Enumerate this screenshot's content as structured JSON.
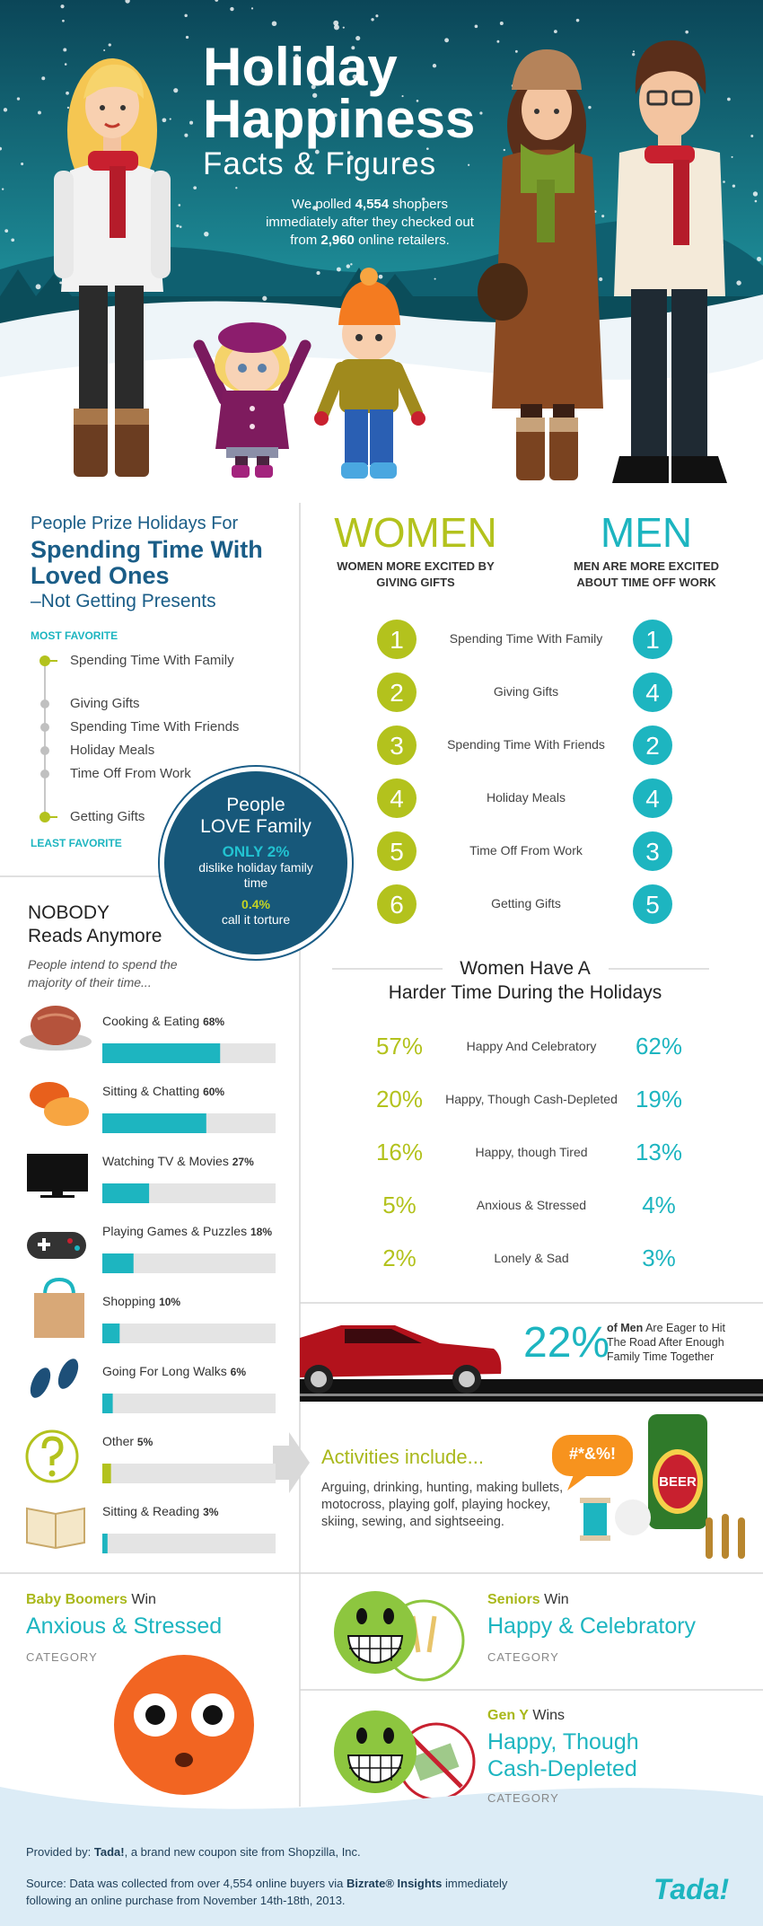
{
  "header": {
    "title_1": "Holiday",
    "title_2": "Happiness",
    "subtitle": "Facts & Figures",
    "intro": [
      "We polled",
      "4,554",
      "shoppers immediately after they checked out from",
      "2,960",
      "online retailers."
    ]
  },
  "favorites": {
    "heading": "People Prize Holidays For",
    "highlight": "Spending Time With Loved Ones",
    "subheading": "–Not Getting Presents",
    "most_label": "MOST FAVORITE",
    "least_label": "LEAST FAVORITE",
    "items": [
      "Spending Time With Family",
      "Giving Gifts",
      "Spending Time With Friends",
      "Holiday Meals",
      "Time Off From Work",
      "Getting Gifts"
    ]
  },
  "family": {
    "title_1": "People",
    "title_2": "LOVE Family",
    "stat_1": "ONLY 2%",
    "stat_1_text": "dislike holiday family time",
    "stat_2": "0.4%",
    "stat_2_text": "call it torture"
  },
  "gender": {
    "women_title": "WOMEN",
    "women_subtitle": "WOMEN MORE EXCITED BY GIVING GIFTS",
    "men_title": "MEN",
    "men_subtitle": "MEN ARE MORE EXCITED ABOUT TIME OFF WORK",
    "women_color": "#b3c21d",
    "men_color": "#1db5c0",
    "rows": [
      {
        "women": 1,
        "label": "Spending Time With Family",
        "men": 1
      },
      {
        "women": 2,
        "label": "Giving Gifts",
        "men": 4
      },
      {
        "women": 3,
        "label": "Spending Time With Friends",
        "men": 2
      },
      {
        "women": 4,
        "label": "Holiday Meals",
        "men": 4
      },
      {
        "women": 5,
        "label": "Time Off From Work",
        "men": 3
      },
      {
        "women": 6,
        "label": "Getting Gifts",
        "men": 5
      }
    ]
  },
  "reading": {
    "title_1": "NOBODY",
    "title_2": "Reads Anymore",
    "note": "People intend to spend the majority of their time...",
    "xlim": [
      0,
      100
    ],
    "color": "#1db5c0",
    "items": [
      {
        "label": "Cooking & Eating",
        "value": 68,
        "value_label": "68%"
      },
      {
        "label": "Sitting & Chatting",
        "value": 60,
        "value_label": "60%"
      },
      {
        "label": "Watching TV & Movies",
        "value": 27,
        "value_label": "27%"
      },
      {
        "label": "Playing Games & Puzzles",
        "value": 18,
        "value_label": "18%"
      },
      {
        "label": "Shopping",
        "value": 10,
        "value_label": "10%"
      },
      {
        "label": "Going For Long Walks",
        "value": 6,
        "value_label": "6%"
      },
      {
        "label": "Other",
        "value": 5,
        "value_label": "5%",
        "color": "#b3c21d"
      },
      {
        "label": "Sitting & Reading",
        "value": 3,
        "value_label": "3%"
      }
    ]
  },
  "harder_time": {
    "title_1": "Women Have A",
    "title_2": "Harder Time During the Holidays",
    "rows": [
      {
        "women": "57%",
        "label": "Happy And Celebratory",
        "men": "62%"
      },
      {
        "women": "20%",
        "label": "Happy, Though Cash-Depleted",
        "men": "19%"
      },
      {
        "women": "16%",
        "label": "Happy, though Tired",
        "men": "13%"
      },
      {
        "women": "5%",
        "label": "Anxious & Stressed",
        "men": "4%"
      },
      {
        "women": "2%",
        "label": "Lonely & Sad",
        "men": "3%"
      }
    ]
  },
  "road": {
    "stat": "22%",
    "text_bold": "of Men",
    "text": "Are Eager to Hit The Road After Enough Family Time Together"
  },
  "men_activities": {
    "title": "Activities include...",
    "text": "Arguing, drinking, hunting, making bullets, motocross, playing golf, playing hockey, skiing, sewing, and sightseeing.",
    "bubble": "#*&%!",
    "can_label": "BEER"
  },
  "winners": [
    {
      "group": "Baby Boomers",
      "verb": "Win",
      "category": "Anxious & Stressed",
      "label": "CATEGORY"
    },
    {
      "group": "Seniors",
      "verb": "Win",
      "category": "Happy & Celebratory",
      "label": "CATEGORY"
    },
    {
      "group": "Gen Y",
      "verb": "Wins",
      "category": "Happy, Though Cash-Depleted",
      "label": "CATEGORY"
    }
  ],
  "footer": {
    "provided_prefix": "Provided by:",
    "provider": "Tada!",
    "provided_text": ", a brand new coupon site from Shopzilla, Inc.",
    "source_prefix": "Source: Data was collected from over 4,554 online buyers via",
    "source_brand": "Bizrate® Insights",
    "source_text": "immediately following an online purchase from November 14th-18th, 2013.",
    "logo": "Tada!"
  }
}
